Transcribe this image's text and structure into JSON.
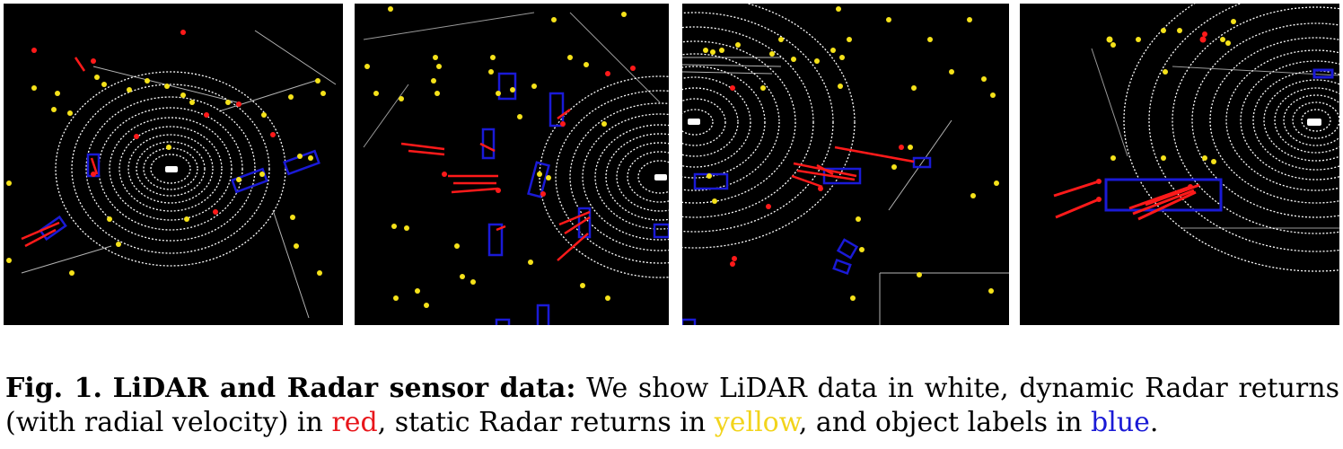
{
  "caption": {
    "label": "Fig. 1.",
    "title": "LiDAR and Radar sensor data:",
    "text_1": "We show LiDAR data in white, dynamic Radar returns (with radial velocity) in",
    "red_word": "red",
    "text_2": ", static Radar returns in",
    "yellow_word": "yellow",
    "text_3": ", and object labels in",
    "blue_word": "blue",
    "text_4": "."
  },
  "colors": {
    "lidar": "#ffffff",
    "dynamic_radar": "#ff1a1a",
    "static_radar": "#f5e21a",
    "object_labels": "#1a1ad6",
    "background": "#000000"
  }
}
